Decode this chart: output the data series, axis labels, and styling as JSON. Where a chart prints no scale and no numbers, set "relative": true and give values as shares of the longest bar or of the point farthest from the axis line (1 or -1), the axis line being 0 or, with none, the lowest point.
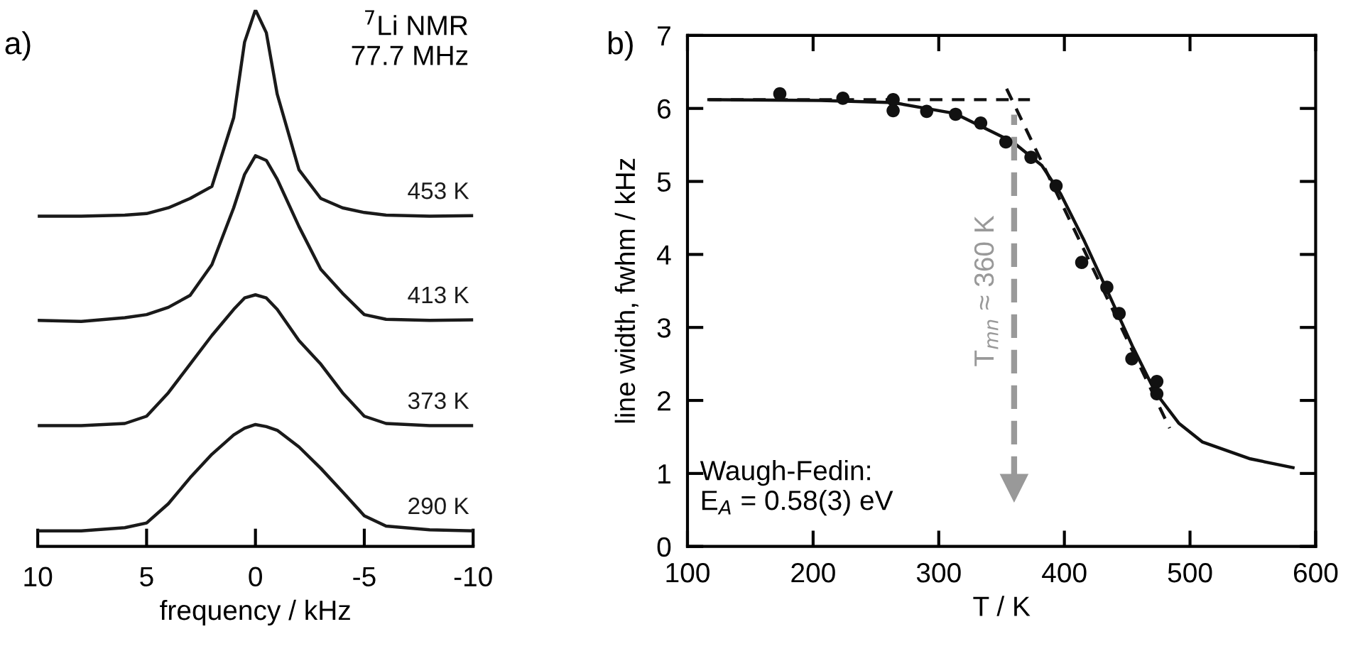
{
  "chart_data": [
    {
      "type": "line",
      "relative": true,
      "xlabel": "frequency / kHz",
      "xlim": [
        10,
        -10
      ],
      "xticks": [
        10,
        5,
        0,
        -5,
        -10
      ],
      "tick_labels": "x",
      "grid": false,
      "legend": false,
      "x": [
        10,
        8,
        6,
        5,
        4,
        3,
        2,
        1,
        0.5,
        0,
        -0.5,
        -1,
        -2,
        -3,
        -4,
        -5,
        -6,
        -8,
        -10
      ],
      "annotations": [
        "a)",
        "$^{7}$Li NMR\n77.7 MHz"
      ],
      "series": [
        {
          "name": "290 K",
          "color": "#1a1a1a",
          "values": [
            0,
            0,
            0.006,
            0.015,
            0.052,
            0.102,
            0.147,
            0.184,
            0.197,
            0.204,
            0.2,
            0.193,
            0.161,
            0.12,
            0.075,
            0.029,
            0.009,
            0.002,
            0
          ]
        },
        {
          "name": "373 K",
          "color": "#1a1a1a",
          "values": [
            0.202,
            0.202,
            0.206,
            0.22,
            0.265,
            0.32,
            0.375,
            0.425,
            0.447,
            0.453,
            0.447,
            0.425,
            0.365,
            0.32,
            0.265,
            0.22,
            0.206,
            0.202,
            0.202
          ]
        },
        {
          "name": "413 K",
          "color": "#1a1a1a",
          "values": [
            0.404,
            0.402,
            0.409,
            0.415,
            0.429,
            0.452,
            0.511,
            0.62,
            0.684,
            0.72,
            0.711,
            0.675,
            0.584,
            0.502,
            0.456,
            0.415,
            0.406,
            0.404,
            0.405
          ]
        },
        {
          "name": "453 K",
          "color": "#1a1a1a",
          "values": [
            0.604,
            0.604,
            0.606,
            0.609,
            0.62,
            0.638,
            0.661,
            0.793,
            0.938,
            1.0,
            0.956,
            0.838,
            0.693,
            0.638,
            0.62,
            0.611,
            0.606,
            0.604,
            0.605
          ]
        }
      ]
    },
    {
      "type": "scatter",
      "xlabel": "T / K",
      "ylabel": "line width, fwhm / kHz",
      "xlim": [
        100,
        600
      ],
      "ylim": [
        0,
        7
      ],
      "xticks": [
        100,
        200,
        300,
        400,
        500,
        600
      ],
      "yticks": [
        0,
        1,
        2,
        3,
        4,
        5,
        6,
        7
      ],
      "grid": false,
      "legend": false,
      "annotations": [
        "b)",
        "Waugh-Fedin:\nE$_{A}$ = 0.58(3) eV"
      ],
      "ref_lines": [
        {
          "axis": "x",
          "value": 360,
          "label": "T$_{mn}$ ≈ 360 K",
          "color": "#999999",
          "line_style": "dashed"
        }
      ],
      "series": [
        {
          "type": "scatter",
          "marker": "circle",
          "color": "#111111",
          "x": [
            173.5,
            223.7,
            263.7,
            263.7,
            290.4,
            313.4,
            333.4,
            353.4,
            373.4,
            393.4,
            413.8,
            433.8,
            443.6,
            453.7,
            473.6,
            473.6
          ],
          "values": [
            6.2,
            6.14,
            6.12,
            5.97,
            5.96,
            5.92,
            5.8,
            5.54,
            5.33,
            4.94,
            3.89,
            3.55,
            3.19,
            2.57,
            2.26,
            2.09
          ]
        },
        {
          "type": "line",
          "line_style": "solid",
          "color": "#111111",
          "x": [
            117,
            206,
            263.7,
            313,
            359,
            382,
            397,
            416,
            435,
            454,
            472.5,
            491,
            510,
            548,
            582
          ],
          "values": [
            6.12,
            6.11,
            6.08,
            5.93,
            5.54,
            5.22,
            4.83,
            4.18,
            3.47,
            2.75,
            2.11,
            1.69,
            1.43,
            1.2,
            1.08
          ]
        },
        {
          "type": "line",
          "line_style": "dashed",
          "color": "#111111",
          "x": [
            117,
            372.6
          ],
          "values": [
            6.12,
            6.12
          ]
        },
        {
          "type": "line",
          "line_style": "dashed",
          "color": "#111111",
          "x": [
            354,
            483.8
          ],
          "values": [
            6.27,
            1.62
          ]
        }
      ]
    }
  ]
}
